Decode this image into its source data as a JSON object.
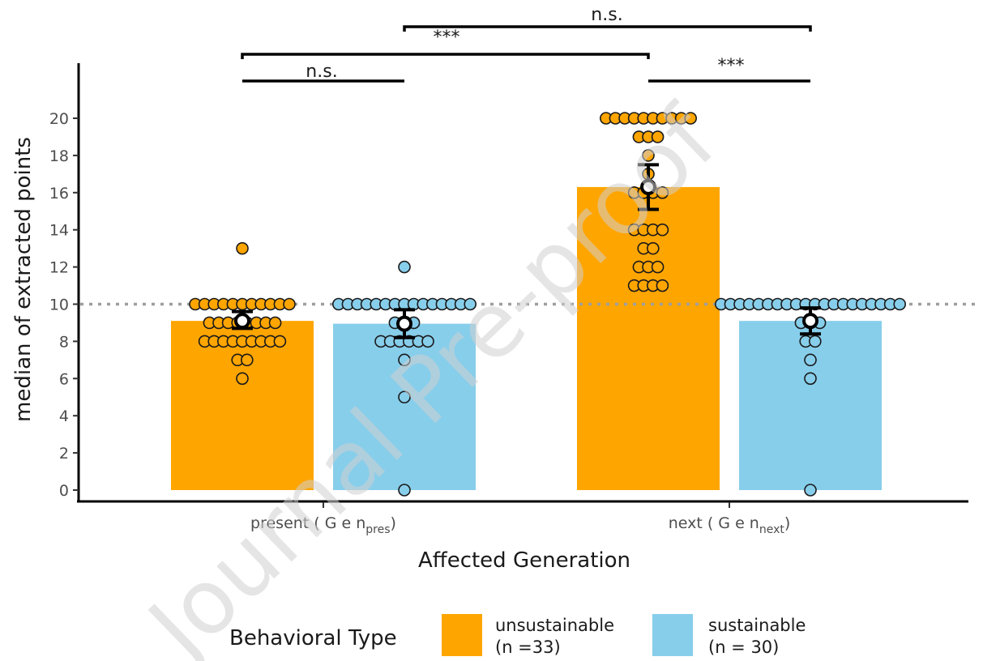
{
  "watermark": "Journal Pre-proof",
  "chart_data": {
    "type": "bar",
    "ylabel": "median of extracted points",
    "xlabel": "Affected Generation",
    "ylim": [
      0,
      22
    ],
    "yticks": [
      0,
      2,
      4,
      6,
      8,
      10,
      12,
      14,
      16,
      18,
      20
    ],
    "reference_line": 10,
    "categories": [
      {
        "label": "present",
        "subscript": "pres"
      },
      {
        "label": "next",
        "subscript": "next"
      }
    ],
    "series": [
      {
        "name": "unsustainable",
        "n_label": "(n =33)",
        "color": "#FFA500",
        "values": [
          9.1,
          16.3
        ],
        "mean": [
          9.1,
          16.3
        ],
        "error": [
          [
            8.7,
            9.6
          ],
          [
            15.1,
            17.5
          ]
        ],
        "points": [
          [
            13,
            10,
            10,
            10,
            10,
            10,
            10,
            10,
            10,
            10,
            10,
            10,
            9,
            9,
            9,
            9,
            9,
            9,
            9,
            9,
            8,
            8,
            8,
            8,
            8,
            8,
            8,
            8,
            8,
            7,
            7,
            6
          ],
          [
            20,
            20,
            20,
            20,
            20,
            20,
            20,
            20,
            20,
            20,
            19,
            19,
            19,
            18,
            17,
            16,
            16,
            16,
            16,
            14,
            14,
            14,
            14,
            13,
            13,
            12,
            12,
            12,
            11,
            11,
            11,
            11
          ]
        ]
      },
      {
        "name": "sustainable",
        "n_label": "(n = 30)",
        "color": "#87CEEB",
        "values": [
          8.95,
          9.1
        ],
        "mean": [
          8.95,
          9.1
        ],
        "error": [
          [
            8.2,
            9.7
          ],
          [
            8.4,
            9.8
          ]
        ],
        "points": [
          [
            12,
            10,
            10,
            10,
            10,
            10,
            10,
            10,
            10,
            10,
            10,
            10,
            10,
            10,
            10,
            10,
            9,
            9,
            9,
            8,
            8,
            8,
            8,
            8,
            8,
            7,
            5,
            0
          ],
          [
            10,
            10,
            10,
            10,
            10,
            10,
            10,
            10,
            10,
            10,
            10,
            10,
            10,
            10,
            10,
            10,
            10,
            10,
            10,
            10,
            9,
            9,
            9,
            8,
            8,
            7,
            6,
            0
          ]
        ]
      }
    ],
    "comparisons": [
      {
        "label": "n.s."
      },
      {
        "label": "***"
      },
      {
        "label": "n.s."
      },
      {
        "label": "***"
      }
    ],
    "legend": {
      "title": "Behavioral Type",
      "position": "bottom"
    }
  }
}
